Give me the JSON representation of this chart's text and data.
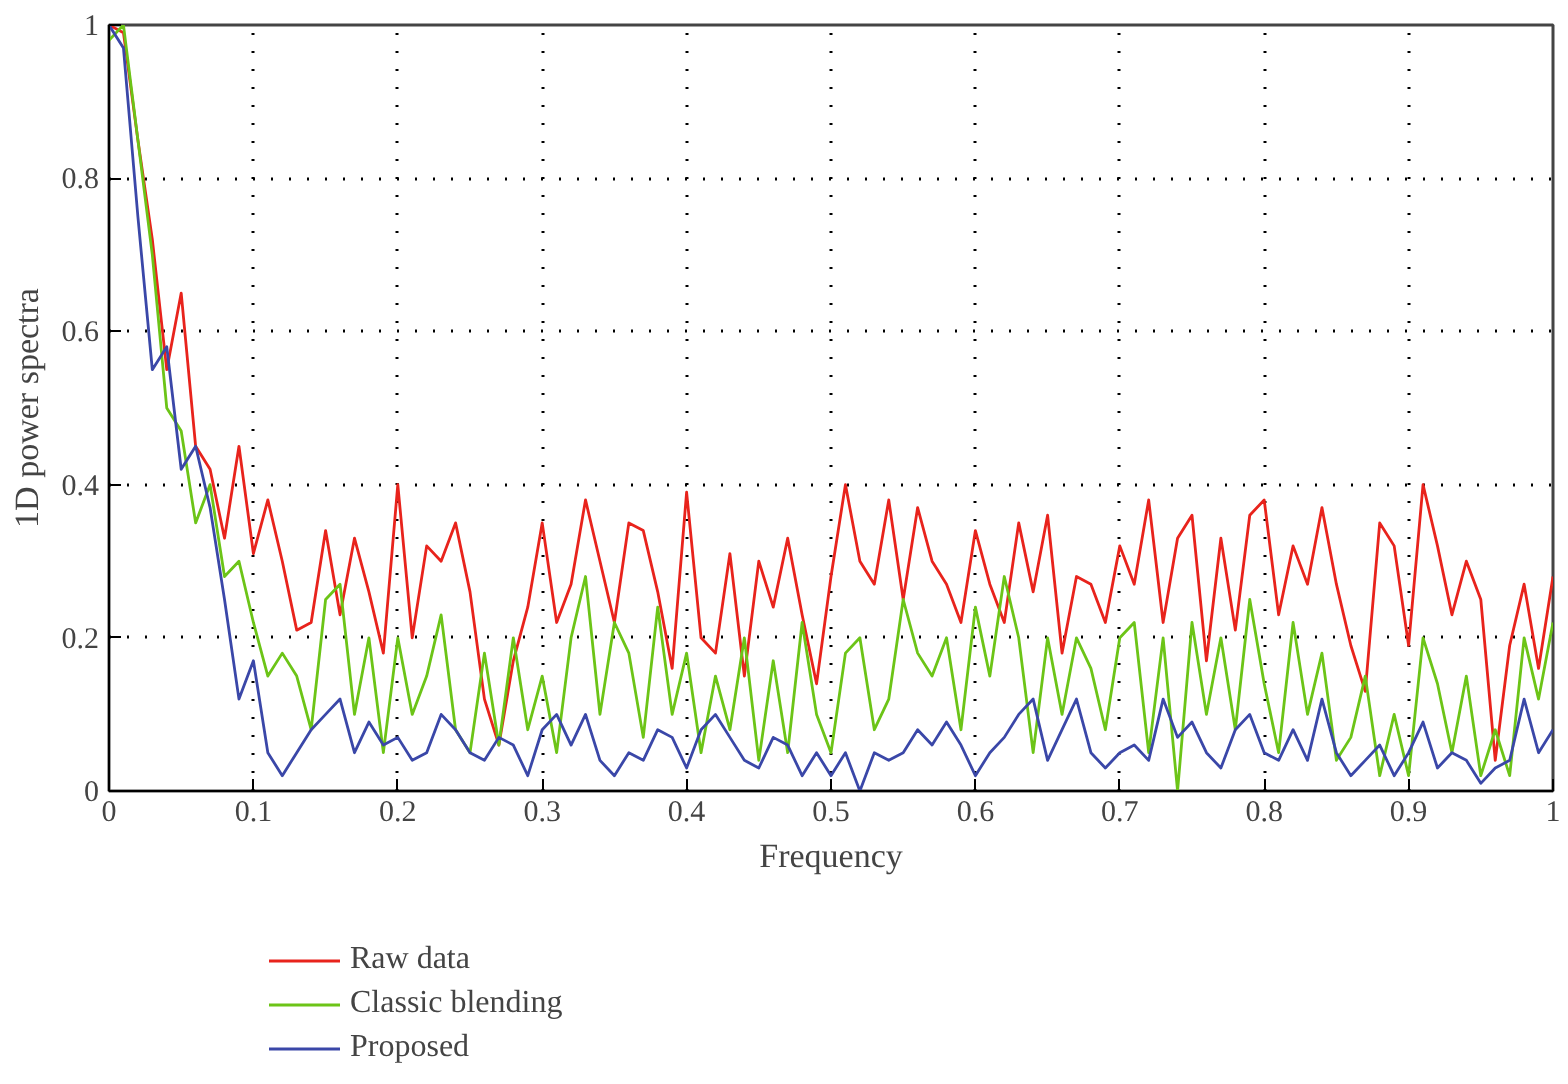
{
  "chart_data": {
    "type": "line",
    "xlabel": "Frequency",
    "ylabel": "1D power spectra",
    "x": [
      0,
      0.01,
      0.02,
      0.03,
      0.04,
      0.05,
      0.06,
      0.07,
      0.08,
      0.09,
      0.1,
      0.11,
      0.12,
      0.13,
      0.14,
      0.15,
      0.16,
      0.17,
      0.18,
      0.19,
      0.2,
      0.21,
      0.22,
      0.23,
      0.24,
      0.25,
      0.26,
      0.27,
      0.28,
      0.29,
      0.3,
      0.31,
      0.32,
      0.33,
      0.34,
      0.35,
      0.36,
      0.37,
      0.38,
      0.39,
      0.4,
      0.41,
      0.42,
      0.43,
      0.44,
      0.45,
      0.46,
      0.47,
      0.48,
      0.49,
      0.5,
      0.51,
      0.52,
      0.53,
      0.54,
      0.55,
      0.56,
      0.57,
      0.58,
      0.59,
      0.6,
      0.61,
      0.62,
      0.63,
      0.64,
      0.65,
      0.66,
      0.67,
      0.68,
      0.69,
      0.7,
      0.71,
      0.72,
      0.73,
      0.74,
      0.75,
      0.76,
      0.77,
      0.78,
      0.79,
      0.8,
      0.81,
      0.82,
      0.83,
      0.84,
      0.85,
      0.86,
      0.87,
      0.88,
      0.89,
      0.9,
      0.91,
      0.92,
      0.93,
      0.94,
      0.95,
      0.96,
      0.97,
      0.98,
      0.99,
      1
    ],
    "series": [
      {
        "name": "Raw data",
        "color": "#e8231c",
        "values": [
          1.0,
          0.99,
          0.85,
          0.72,
          0.55,
          0.65,
          0.45,
          0.42,
          0.33,
          0.45,
          0.31,
          0.38,
          0.3,
          0.21,
          0.22,
          0.34,
          0.23,
          0.33,
          0.26,
          0.18,
          0.4,
          0.2,
          0.32,
          0.3,
          0.35,
          0.26,
          0.12,
          0.06,
          0.17,
          0.24,
          0.35,
          0.22,
          0.27,
          0.38,
          0.3,
          0.22,
          0.35,
          0.34,
          0.26,
          0.16,
          0.39,
          0.2,
          0.18,
          0.31,
          0.15,
          0.3,
          0.24,
          0.33,
          0.23,
          0.14,
          0.28,
          0.4,
          0.3,
          0.27,
          0.38,
          0.25,
          0.37,
          0.3,
          0.27,
          0.22,
          0.34,
          0.27,
          0.22,
          0.35,
          0.26,
          0.36,
          0.18,
          0.28,
          0.27,
          0.22,
          0.32,
          0.27,
          0.38,
          0.22,
          0.33,
          0.36,
          0.17,
          0.33,
          0.21,
          0.36,
          0.38,
          0.23,
          0.32,
          0.27,
          0.37,
          0.27,
          0.19,
          0.13,
          0.35,
          0.32,
          0.19,
          0.4,
          0.32,
          0.23,
          0.3,
          0.25,
          0.04,
          0.19,
          0.27,
          0.16,
          0.28
        ]
      },
      {
        "name": "Classic blending",
        "color": "#6cc417",
        "values": [
          0.98,
          1.0,
          0.85,
          0.7,
          0.5,
          0.47,
          0.35,
          0.4,
          0.28,
          0.3,
          0.22,
          0.15,
          0.18,
          0.15,
          0.08,
          0.25,
          0.27,
          0.1,
          0.2,
          0.05,
          0.2,
          0.1,
          0.15,
          0.23,
          0.08,
          0.05,
          0.18,
          0.06,
          0.2,
          0.08,
          0.15,
          0.05,
          0.2,
          0.28,
          0.1,
          0.22,
          0.18,
          0.07,
          0.24,
          0.1,
          0.18,
          0.05,
          0.15,
          0.08,
          0.2,
          0.04,
          0.17,
          0.05,
          0.22,
          0.1,
          0.05,
          0.18,
          0.2,
          0.08,
          0.12,
          0.25,
          0.18,
          0.15,
          0.2,
          0.08,
          0.24,
          0.15,
          0.28,
          0.2,
          0.05,
          0.2,
          0.1,
          0.2,
          0.16,
          0.08,
          0.2,
          0.22,
          0.05,
          0.2,
          0.0,
          0.22,
          0.1,
          0.2,
          0.08,
          0.25,
          0.14,
          0.05,
          0.22,
          0.1,
          0.18,
          0.04,
          0.07,
          0.15,
          0.02,
          0.1,
          0.02,
          0.2,
          0.14,
          0.05,
          0.15,
          0.02,
          0.08,
          0.02,
          0.2,
          0.12,
          0.22
        ]
      },
      {
        "name": "Proposed",
        "color": "#3a47a8",
        "values": [
          1.0,
          0.97,
          0.75,
          0.55,
          0.58,
          0.42,
          0.45,
          0.37,
          0.25,
          0.12,
          0.17,
          0.05,
          0.02,
          0.05,
          0.08,
          0.1,
          0.12,
          0.05,
          0.09,
          0.06,
          0.07,
          0.04,
          0.05,
          0.1,
          0.08,
          0.05,
          0.04,
          0.07,
          0.06,
          0.02,
          0.08,
          0.1,
          0.06,
          0.1,
          0.04,
          0.02,
          0.05,
          0.04,
          0.08,
          0.07,
          0.03,
          0.08,
          0.1,
          0.07,
          0.04,
          0.03,
          0.07,
          0.06,
          0.02,
          0.05,
          0.02,
          0.05,
          0.0,
          0.05,
          0.04,
          0.05,
          0.08,
          0.06,
          0.09,
          0.06,
          0.02,
          0.05,
          0.07,
          0.1,
          0.12,
          0.04,
          0.08,
          0.12,
          0.05,
          0.03,
          0.05,
          0.06,
          0.04,
          0.12,
          0.07,
          0.09,
          0.05,
          0.03,
          0.08,
          0.1,
          0.05,
          0.04,
          0.08,
          0.04,
          0.12,
          0.05,
          0.02,
          0.04,
          0.06,
          0.02,
          0.05,
          0.09,
          0.03,
          0.05,
          0.04,
          0.01,
          0.03,
          0.04,
          0.12,
          0.05,
          0.08
        ]
      }
    ],
    "xlim": [
      0,
      1
    ],
    "ylim": [
      0,
      1
    ],
    "xticks": [
      0,
      0.1,
      0.2,
      0.3,
      0.4,
      0.5,
      0.6,
      0.7,
      0.8,
      0.9,
      1
    ],
    "yticks": [
      0,
      0.2,
      0.4,
      0.6,
      0.8,
      1
    ],
    "grid": true,
    "legend": "bottom",
    "line_style": "solid"
  }
}
